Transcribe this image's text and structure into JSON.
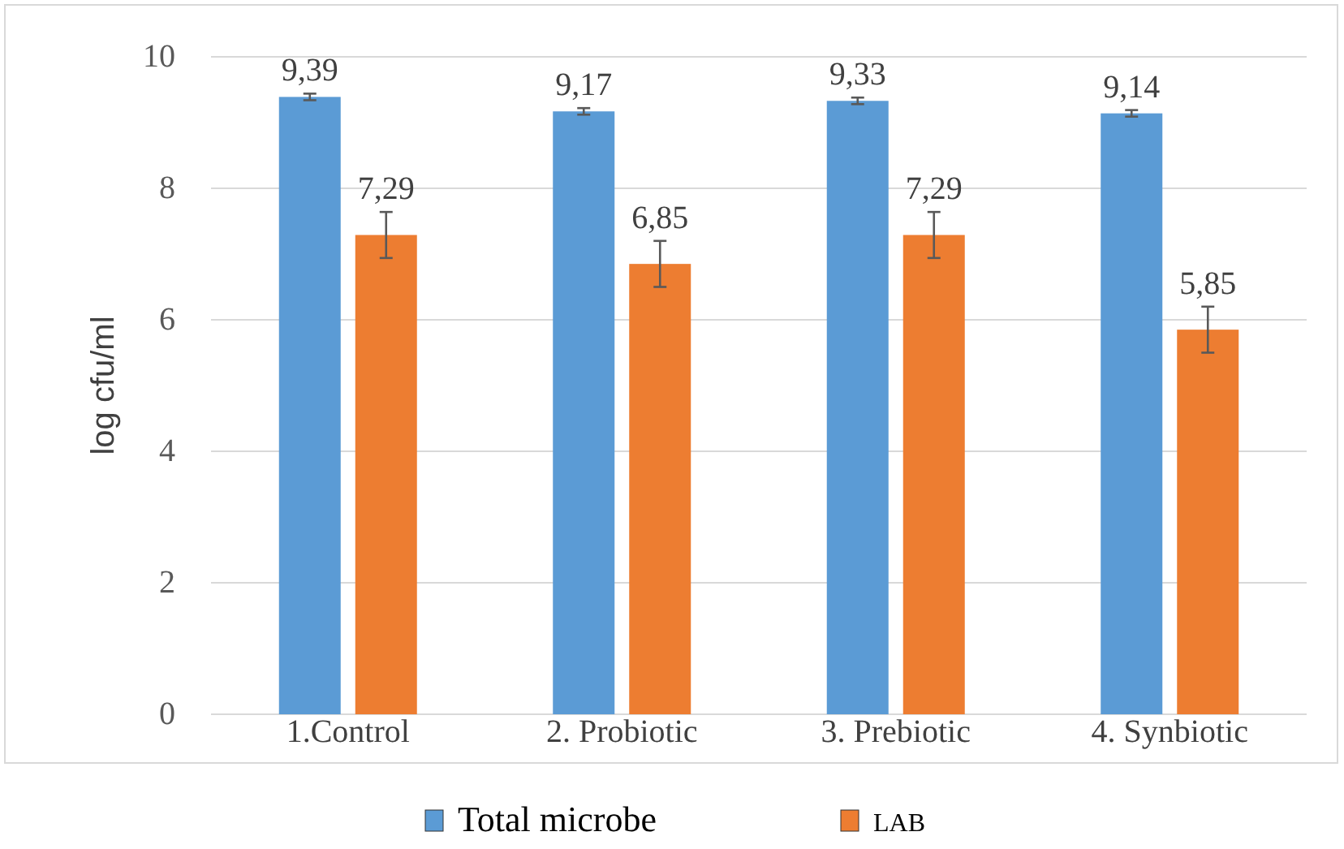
{
  "chart_data": {
    "type": "bar",
    "ylabel": "log cfu/ml",
    "categories": [
      "1.Control",
      "2. Probiotic",
      "3. Prebiotic",
      "4. Synbiotic"
    ],
    "series": [
      {
        "name": "Total microbe",
        "color": "#5b9bd5",
        "values": [
          9.39,
          9.17,
          9.33,
          9.14
        ],
        "errors": [
          0.05,
          0.05,
          0.05,
          0.05
        ],
        "value_labels": [
          "9,39",
          "9,17",
          "9,33",
          "9,14"
        ]
      },
      {
        "name": "LAB",
        "color": "#ed7d31",
        "values": [
          7.29,
          6.85,
          7.29,
          5.85
        ],
        "errors": [
          0.35,
          0.35,
          0.35,
          0.35
        ],
        "value_labels": [
          "7,29",
          "6,85",
          "7,29",
          "5,85"
        ]
      }
    ],
    "ylim": [
      0,
      10
    ],
    "yticks": [
      0,
      2,
      4,
      6,
      8,
      10
    ],
    "grid": "y",
    "legend": "bottom"
  }
}
